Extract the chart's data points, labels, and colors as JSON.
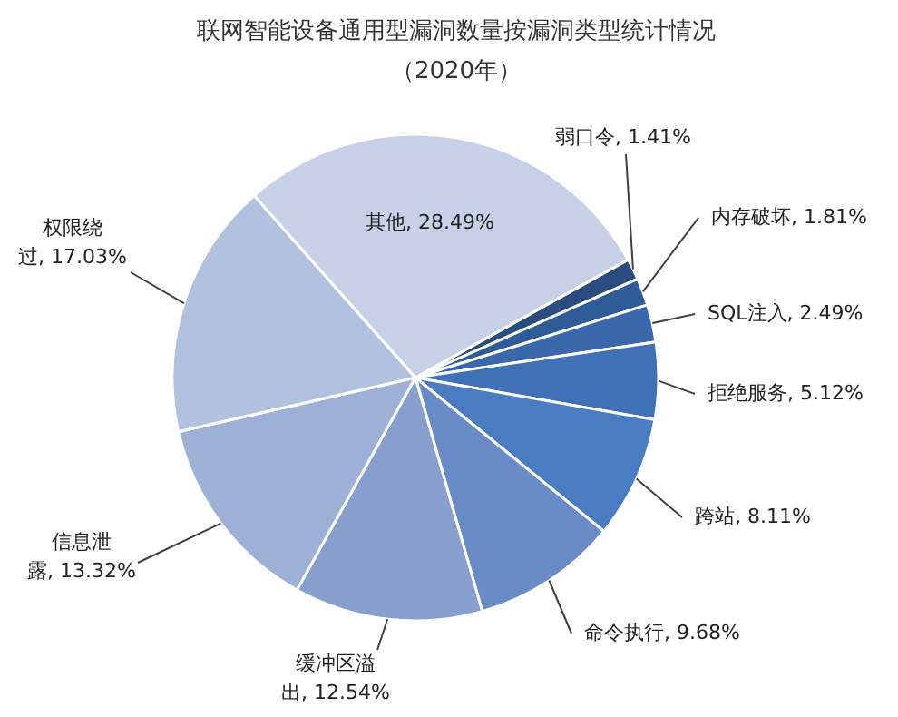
{
  "chart_data": {
    "type": "pie",
    "title": "联网智能设备通用型漏洞数量按漏洞类型统计情况",
    "subtitle": "（2020年）",
    "categories": [
      "弱口令",
      "内存破坏",
      "SQL注入",
      "拒绝服务",
      "跨站",
      "命令执行",
      "缓冲区溢出",
      "信息泄露",
      "权限绕过",
      "其他"
    ],
    "values": [
      1.41,
      1.81,
      2.49,
      5.12,
      8.11,
      9.68,
      12.54,
      13.32,
      17.03,
      28.49
    ],
    "value_labels": [
      "1.41%",
      "1.81%",
      "2.49%",
      "5.12%",
      "8.11%",
      "9.68%",
      "12.54%",
      "13.32%",
      "17.03%",
      "28.49%"
    ],
    "colors": [
      "#2b4c7e",
      "#2f5b96",
      "#3a68aa",
      "#4071b6",
      "#4a7cc1",
      "#6a8cc6",
      "#889fcd",
      "#9db0d6",
      "#b2c1df",
      "#c6d1e8"
    ]
  }
}
